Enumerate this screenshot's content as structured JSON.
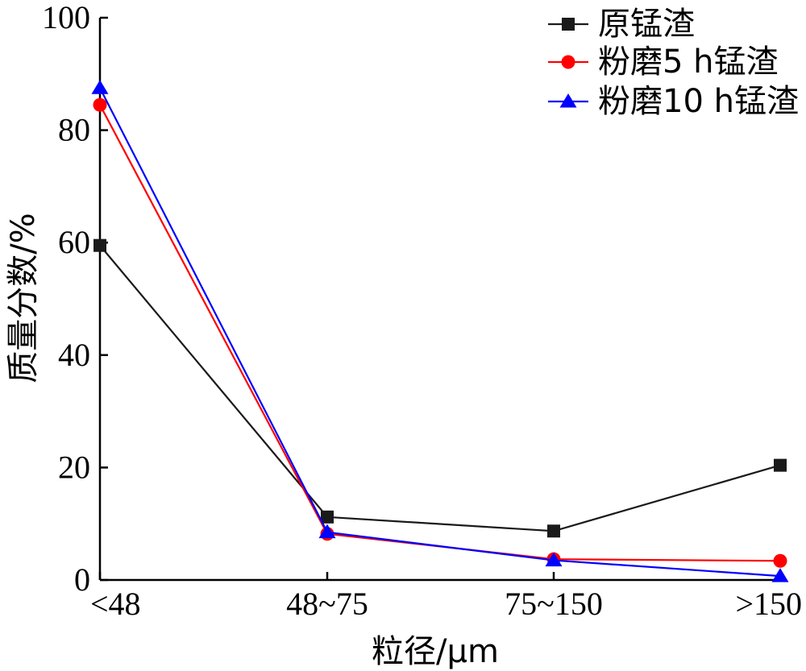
{
  "chart_data": {
    "type": "line",
    "categories": [
      "<48",
      "48~75",
      "75~150",
      ">150"
    ],
    "series": [
      {
        "name": "原锰渣",
        "values": [
          59.5,
          11.2,
          8.7,
          20.4
        ],
        "color": "#1a1a1a",
        "marker": "square"
      },
      {
        "name": "粉磨5 h锰渣",
        "values": [
          84.5,
          8.2,
          3.7,
          3.4
        ],
        "color": "#ff0000",
        "marker": "circle"
      },
      {
        "name": "粉磨10 h锰渣",
        "values": [
          87.5,
          8.5,
          3.5,
          0.7
        ],
        "color": "#0000ff",
        "marker": "triangle"
      }
    ],
    "xlabel": "粒径/μm",
    "ylabel": "质量分数/%",
    "ylim": [
      0,
      100
    ],
    "yticks": [
      0,
      20,
      40,
      60,
      80,
      100
    ],
    "legend_position": "top-right",
    "grid": false
  }
}
